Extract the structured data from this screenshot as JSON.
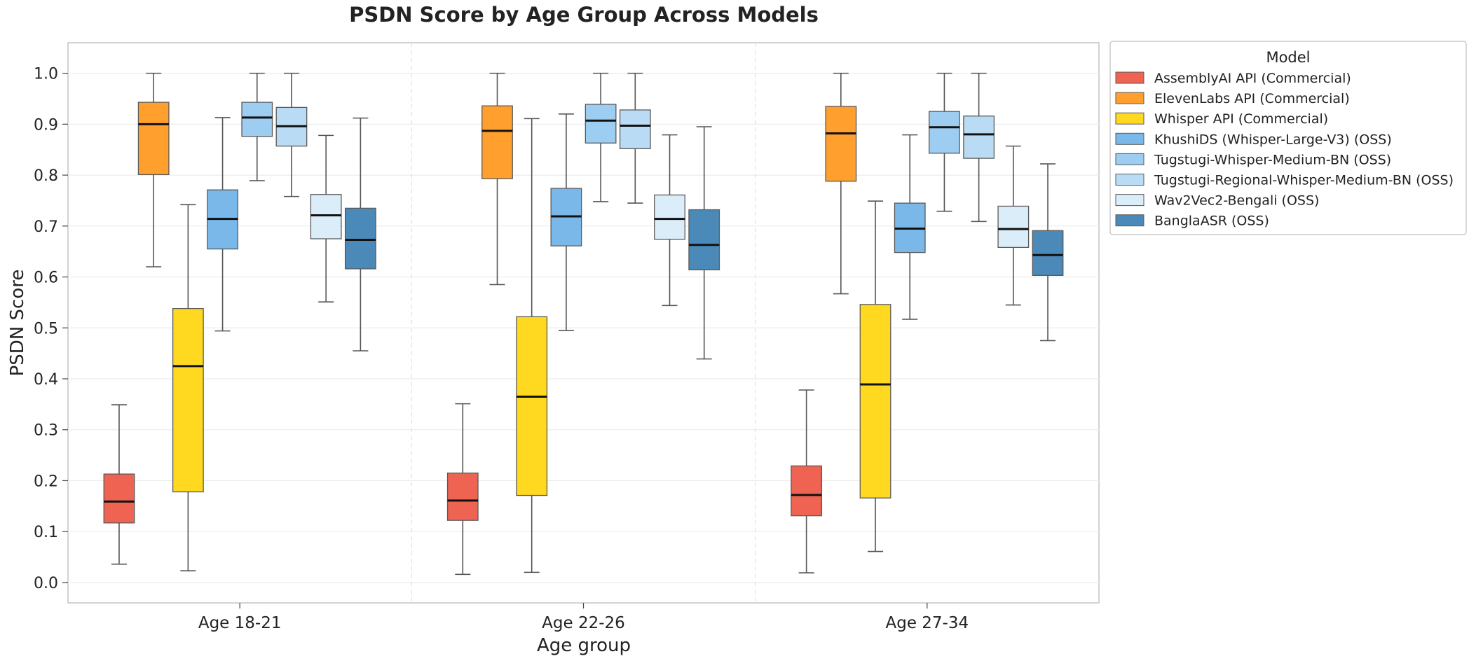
{
  "chart_data": {
    "type": "box",
    "title": "PSDN Score by Age Group Across Models",
    "xlabel": "Age group",
    "ylabel": "PSDN Score",
    "ylim": [
      -0.04,
      1.06
    ],
    "yticks": [
      "0.0",
      "0.1",
      "0.2",
      "0.3",
      "0.4",
      "0.5",
      "0.6",
      "0.7",
      "0.8",
      "0.9",
      "1.0"
    ],
    "grid": true,
    "legend_title": "Model",
    "legend_position": "outside-top-right",
    "categories": [
      "Age 18-21",
      "Age 22-26",
      "Age 27-34"
    ],
    "series": [
      {
        "name": "AssemblyAI API (Commercial)",
        "color": "#ee6352",
        "boxes": [
          {
            "whislo": 0.036,
            "q1": 0.117,
            "med": 0.159,
            "q3": 0.213,
            "whishi": 0.349
          },
          {
            "whislo": 0.016,
            "q1": 0.122,
            "med": 0.161,
            "q3": 0.215,
            "whishi": 0.351
          },
          {
            "whislo": 0.019,
            "q1": 0.131,
            "med": 0.172,
            "q3": 0.229,
            "whishi": 0.378
          }
        ]
      },
      {
        "name": "ElevenLabs API (Commercial)",
        "color": "#ff9f2e",
        "boxes": [
          {
            "whislo": 0.62,
            "q1": 0.801,
            "med": 0.9,
            "q3": 0.943,
            "whishi": 1.0
          },
          {
            "whislo": 0.585,
            "q1": 0.793,
            "med": 0.887,
            "q3": 0.936,
            "whishi": 1.0
          },
          {
            "whislo": 0.567,
            "q1": 0.788,
            "med": 0.882,
            "q3": 0.935,
            "whishi": 1.0
          }
        ]
      },
      {
        "name": "Whisper API (Commercial)",
        "color": "#ffd91f",
        "boxes": [
          {
            "whislo": 0.023,
            "q1": 0.178,
            "med": 0.425,
            "q3": 0.538,
            "whishi": 0.742
          },
          {
            "whislo": 0.02,
            "q1": 0.171,
            "med": 0.365,
            "q3": 0.522,
            "whishi": 0.911
          },
          {
            "whislo": 0.061,
            "q1": 0.166,
            "med": 0.389,
            "q3": 0.546,
            "whishi": 0.749
          }
        ]
      },
      {
        "name": "KhushiDS (Whisper-Large-V3) (OSS)",
        "color": "#79b8e8",
        "boxes": [
          {
            "whislo": 0.494,
            "q1": 0.655,
            "med": 0.714,
            "q3": 0.771,
            "whishi": 0.913
          },
          {
            "whislo": 0.495,
            "q1": 0.661,
            "med": 0.719,
            "q3": 0.774,
            "whishi": 0.92
          },
          {
            "whislo": 0.517,
            "q1": 0.648,
            "med": 0.695,
            "q3": 0.745,
            "whishi": 0.879
          }
        ]
      },
      {
        "name": "Tugstugi-Whisper-Medium-BN (OSS)",
        "color": "#9dcdf1",
        "boxes": [
          {
            "whislo": 0.789,
            "q1": 0.876,
            "med": 0.913,
            "q3": 0.943,
            "whishi": 1.0
          },
          {
            "whislo": 0.748,
            "q1": 0.863,
            "med": 0.907,
            "q3": 0.939,
            "whishi": 1.0
          },
          {
            "whislo": 0.729,
            "q1": 0.843,
            "med": 0.894,
            "q3": 0.925,
            "whishi": 1.0
          }
        ]
      },
      {
        "name": "Tugstugi-Regional-Whisper-Medium-BN (OSS)",
        "color": "#b9dcf4",
        "boxes": [
          {
            "whislo": 0.758,
            "q1": 0.857,
            "med": 0.896,
            "q3": 0.933,
            "whishi": 1.0
          },
          {
            "whislo": 0.745,
            "q1": 0.852,
            "med": 0.897,
            "q3": 0.928,
            "whishi": 1.0
          },
          {
            "whislo": 0.709,
            "q1": 0.833,
            "med": 0.88,
            "q3": 0.916,
            "whishi": 1.0
          }
        ]
      },
      {
        "name": "Wav2Vec2-Bengali (OSS)",
        "color": "#dcedfa",
        "boxes": [
          {
            "whislo": 0.551,
            "q1": 0.675,
            "med": 0.721,
            "q3": 0.762,
            "whishi": 0.878
          },
          {
            "whislo": 0.544,
            "q1": 0.674,
            "med": 0.714,
            "q3": 0.761,
            "whishi": 0.879
          },
          {
            "whislo": 0.545,
            "q1": 0.658,
            "med": 0.694,
            "q3": 0.739,
            "whishi": 0.857
          }
        ]
      },
      {
        "name": "BanglaASR (OSS)",
        "color": "#4a89b8",
        "boxes": [
          {
            "whislo": 0.455,
            "q1": 0.616,
            "med": 0.673,
            "q3": 0.735,
            "whishi": 0.912
          },
          {
            "whislo": 0.439,
            "q1": 0.614,
            "med": 0.663,
            "q3": 0.732,
            "whishi": 0.895
          },
          {
            "whislo": 0.475,
            "q1": 0.603,
            "med": 0.643,
            "q3": 0.691,
            "whishi": 0.822
          }
        ]
      }
    ]
  }
}
